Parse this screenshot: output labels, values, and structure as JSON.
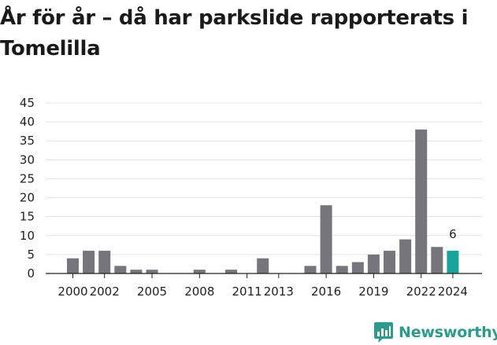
{
  "title": "År för år – då har parkslide rapporterats i Tomelilla",
  "brand": {
    "name": "Newsworthy",
    "logo_icon": "newsworthy-chart-icon",
    "color": "#2e9a8d"
  },
  "chart_data": {
    "type": "bar",
    "title": "År för år – då har parkslide rapporterats i Tomelilla",
    "xlabel": "",
    "ylabel": "",
    "categories": [
      "2000",
      "2001",
      "2002",
      "2003",
      "2004",
      "2005",
      "2006",
      "2007",
      "2008",
      "2009",
      "2010",
      "2011",
      "2012",
      "2013",
      "2014",
      "2015",
      "2016",
      "2017",
      "2018",
      "2019",
      "2020",
      "2021",
      "2022",
      "2023",
      "2024"
    ],
    "values": [
      4,
      6,
      6,
      2,
      1,
      1,
      0,
      0,
      1,
      0,
      1,
      0,
      4,
      0,
      0,
      2,
      18,
      2,
      3,
      5,
      6,
      9,
      38,
      7,
      6
    ],
    "x_tick_labels": [
      "2000",
      "2002",
      "2005",
      "2008",
      "2011",
      "2013",
      "2016",
      "2019",
      "2022",
      "2024"
    ],
    "y_ticks": [
      0,
      5,
      10,
      15,
      20,
      25,
      30,
      35,
      40,
      45
    ],
    "ylim": [
      0,
      45
    ],
    "grid": true,
    "bar_color": "#75757b",
    "highlight_color": "#1aa39a",
    "highlight_category": "2024",
    "data_labels": [
      {
        "category": "2024",
        "text": "6"
      }
    ]
  }
}
